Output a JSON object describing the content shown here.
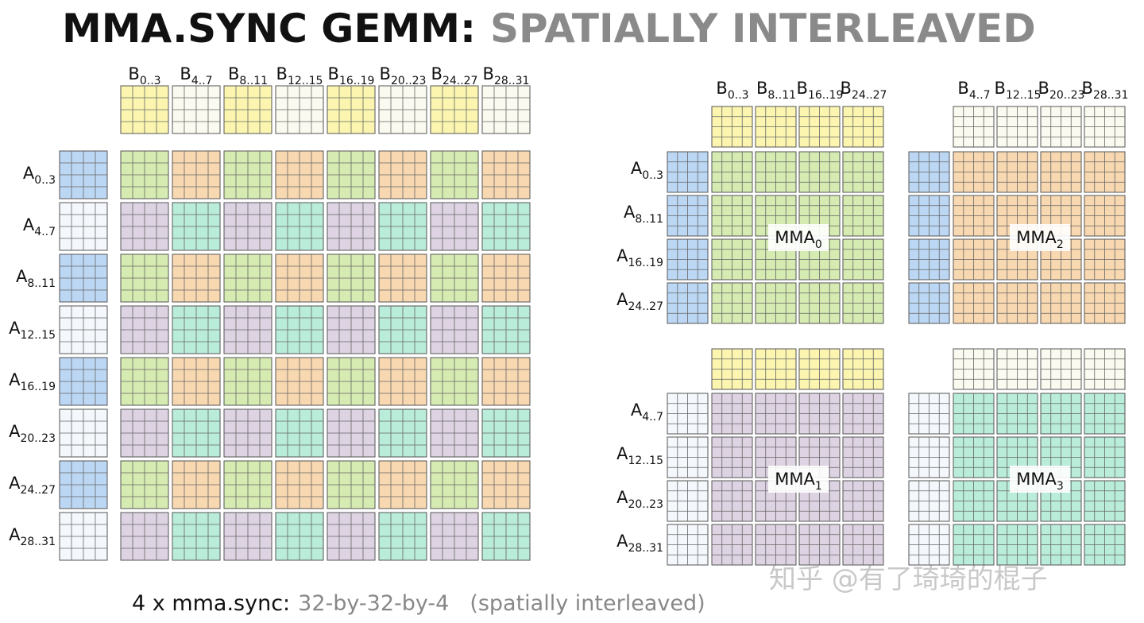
{
  "title": {
    "main": "MMA.SYNC GEMM:",
    "sub": "SPATIALLY INTERLEAVED"
  },
  "left": {
    "b_labels": [
      {
        "base": "B",
        "sub": "0..3"
      },
      {
        "base": "B",
        "sub": "4..7"
      },
      {
        "base": "B",
        "sub": "8..11"
      },
      {
        "base": "B",
        "sub": "12..15"
      },
      {
        "base": "B",
        "sub": "16..19"
      },
      {
        "base": "B",
        "sub": "20..23"
      },
      {
        "base": "B",
        "sub": "24..27"
      },
      {
        "base": "B",
        "sub": "28..31"
      }
    ],
    "a_labels": [
      {
        "base": "A",
        "sub": "0..3"
      },
      {
        "base": "A",
        "sub": "4..7"
      },
      {
        "base": "A",
        "sub": "8..11"
      },
      {
        "base": "A",
        "sub": "12..15"
      },
      {
        "base": "A",
        "sub": "16..19"
      },
      {
        "base": "A",
        "sub": "20..23"
      },
      {
        "base": "A",
        "sub": "24..27"
      },
      {
        "base": "A",
        "sub": "28..31"
      }
    ]
  },
  "right": {
    "b_labels_left": [
      {
        "base": "B",
        "sub": "0..3"
      },
      {
        "base": "B",
        "sub": "8..11"
      },
      {
        "base": "B",
        "sub": "16..19"
      },
      {
        "base": "B",
        "sub": "24..27"
      }
    ],
    "b_labels_right": [
      {
        "base": "B",
        "sub": "4..7"
      },
      {
        "base": "B",
        "sub": "12..15"
      },
      {
        "base": "B",
        "sub": "20..23"
      },
      {
        "base": "B",
        "sub": "28..31"
      }
    ],
    "a_labels_top": [
      {
        "base": "A",
        "sub": "0..3"
      },
      {
        "base": "A",
        "sub": "8..11"
      },
      {
        "base": "A",
        "sub": "16..19"
      },
      {
        "base": "A",
        "sub": "24..27"
      }
    ],
    "a_labels_bottom": [
      {
        "base": "A",
        "sub": "4..7"
      },
      {
        "base": "A",
        "sub": "12..15"
      },
      {
        "base": "A",
        "sub": "20..23"
      },
      {
        "base": "A",
        "sub": "28..31"
      }
    ],
    "mma_labels": [
      {
        "base": "MMA",
        "sub": "0"
      },
      {
        "base": "MMA",
        "sub": "2"
      },
      {
        "base": "MMA",
        "sub": "1"
      },
      {
        "base": "MMA",
        "sub": "3"
      }
    ]
  },
  "caption": {
    "lead": "4 x mma.sync:",
    "shape": "32-by-32-by-4",
    "note": "(spatially interleaved)"
  },
  "watermark": "知乎 @有了琦琦的棍子"
}
